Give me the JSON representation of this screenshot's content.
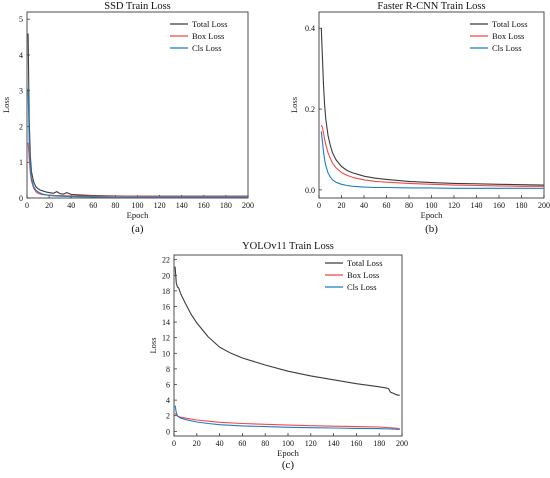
{
  "colors": {
    "total": "#3c3c3c",
    "box": "#ee4a4a",
    "cls": "#1f7dc4"
  },
  "chart_data": [
    {
      "type": "line",
      "panel_label": "(a)",
      "title": "SSD Train Loss",
      "xlabel": "Epoch",
      "ylabel": "Loss",
      "xlim": [
        0,
        200
      ],
      "ylim": [
        0,
        5.2
      ],
      "xticks": [
        0,
        20,
        40,
        60,
        80,
        100,
        120,
        140,
        160,
        180,
        200
      ],
      "yticks": [
        0,
        1,
        2,
        3,
        4,
        5
      ],
      "legend": "top-right",
      "series": [
        {
          "name": "Total Loss",
          "color_key": "total",
          "x": [
            1,
            2,
            3,
            4,
            6,
            8,
            10,
            12,
            14,
            17,
            20,
            24,
            27,
            30,
            33,
            36,
            40,
            45,
            50,
            60,
            80,
            100,
            120,
            140,
            160,
            180,
            200
          ],
          "y": [
            4.6,
            2.2,
            1.2,
            0.75,
            0.45,
            0.32,
            0.26,
            0.22,
            0.2,
            0.17,
            0.15,
            0.13,
            0.18,
            0.12,
            0.11,
            0.15,
            0.1,
            0.09,
            0.08,
            0.07,
            0.06,
            0.05,
            0.05,
            0.05,
            0.05,
            0.05,
            0.05
          ]
        },
        {
          "name": "Box Loss",
          "color_key": "box",
          "x": [
            1,
            2,
            3,
            4,
            6,
            8,
            10,
            13,
            16,
            20,
            25,
            30,
            40,
            60,
            80,
            100,
            120,
            140,
            160,
            180,
            200
          ],
          "y": [
            1.55,
            1.1,
            0.72,
            0.48,
            0.28,
            0.18,
            0.13,
            0.1,
            0.09,
            0.08,
            0.07,
            0.07,
            0.06,
            0.05,
            0.05,
            0.05,
            0.04,
            0.04,
            0.04,
            0.04,
            0.04
          ]
        },
        {
          "name": "Cls Loss",
          "color_key": "cls",
          "x": [
            1,
            2,
            3,
            4,
            6,
            8,
            10,
            12,
            14,
            17,
            20,
            25,
            30,
            40,
            60,
            80,
            100,
            120,
            140,
            160,
            180,
            200
          ],
          "y": [
            3.05,
            1.6,
            0.9,
            0.55,
            0.32,
            0.22,
            0.17,
            0.14,
            0.11,
            0.09,
            0.07,
            0.06,
            0.05,
            0.04,
            0.03,
            0.02,
            0.02,
            0.02,
            0.02,
            0.02,
            0.02,
            0.02
          ]
        }
      ]
    },
    {
      "type": "line",
      "panel_label": "(b)",
      "title": "Faster R-CNN Train Loss",
      "xlabel": "Epoch",
      "ylabel": "Loss",
      "xlim": [
        0,
        200
      ],
      "ylim": [
        -0.02,
        0.44
      ],
      "xticks": [
        0,
        20,
        40,
        60,
        80,
        100,
        120,
        140,
        160,
        180,
        200
      ],
      "yticks": [
        0,
        0.2,
        0.4
      ],
      "ytick_labels": [
        "0.0",
        "0.2",
        "0.4"
      ],
      "legend": "top-right",
      "series": [
        {
          "name": "Total Loss",
          "color_key": "total",
          "x": [
            2,
            3,
            4,
            5,
            6,
            8,
            10,
            12,
            15,
            20,
            25,
            30,
            40,
            50,
            60,
            80,
            100,
            120,
            140,
            160,
            180,
            200
          ],
          "y": [
            0.4,
            0.33,
            0.26,
            0.21,
            0.175,
            0.135,
            0.11,
            0.092,
            0.075,
            0.058,
            0.048,
            0.042,
            0.034,
            0.029,
            0.026,
            0.021,
            0.018,
            0.016,
            0.015,
            0.014,
            0.013,
            0.012
          ]
        },
        {
          "name": "Box Loss",
          "color_key": "box",
          "x": [
            2,
            3,
            4,
            5,
            6,
            8,
            10,
            12,
            15,
            20,
            25,
            30,
            40,
            50,
            60,
            80,
            100,
            120,
            140,
            160,
            180,
            200
          ],
          "y": [
            0.16,
            0.155,
            0.14,
            0.125,
            0.112,
            0.092,
            0.078,
            0.066,
            0.055,
            0.043,
            0.036,
            0.031,
            0.025,
            0.021,
            0.019,
            0.016,
            0.014,
            0.012,
            0.011,
            0.01,
            0.009,
            0.009
          ]
        },
        {
          "name": "Cls Loss",
          "color_key": "cls",
          "x": [
            2,
            3,
            4,
            5,
            6,
            8,
            10,
            12,
            15,
            20,
            25,
            30,
            40,
            50,
            60,
            80,
            100,
            120,
            140,
            160,
            180,
            200
          ],
          "y": [
            0.145,
            0.12,
            0.095,
            0.075,
            0.06,
            0.042,
            0.032,
            0.025,
            0.019,
            0.014,
            0.011,
            0.009,
            0.007,
            0.006,
            0.006,
            0.005,
            0.005,
            0.004,
            0.004,
            0.004,
            0.004,
            0.004
          ]
        }
      ]
    },
    {
      "type": "line",
      "panel_label": "(c)",
      "title": "YOLOv11 Train Loss",
      "xlabel": "Epoch",
      "ylabel": "Loss",
      "xlim": [
        0,
        200
      ],
      "ylim": [
        -0.6,
        22.6
      ],
      "xticks": [
        0,
        20,
        40,
        60,
        80,
        100,
        120,
        140,
        160,
        180,
        200
      ],
      "yticks": [
        0,
        2,
        4,
        6,
        8,
        10,
        12,
        14,
        16,
        18,
        20,
        22
      ],
      "legend": "top-right",
      "series": [
        {
          "name": "Total Loss",
          "color_key": "total",
          "x": [
            1,
            2,
            3,
            4,
            5,
            6,
            8,
            10,
            15,
            20,
            25,
            30,
            40,
            50,
            60,
            80,
            100,
            120,
            140,
            160,
            180,
            188,
            190,
            192,
            195,
            198
          ],
          "y": [
            21.1,
            19.0,
            18.5,
            18.4,
            18.0,
            17.6,
            17.0,
            16.4,
            15.0,
            13.9,
            13.0,
            12.1,
            10.8,
            10.0,
            9.4,
            8.5,
            7.7,
            7.1,
            6.6,
            6.1,
            5.7,
            5.5,
            5.0,
            4.9,
            4.7,
            4.6
          ]
        },
        {
          "name": "Box Loss",
          "color_key": "box",
          "x": [
            1,
            2,
            3,
            5,
            10,
            20,
            30,
            40,
            60,
            80,
            100,
            120,
            140,
            160,
            180,
            190,
            198
          ],
          "y": [
            2.3,
            2.1,
            1.95,
            1.85,
            1.7,
            1.45,
            1.3,
            1.15,
            1.0,
            0.9,
            0.8,
            0.72,
            0.65,
            0.6,
            0.55,
            0.45,
            0.35
          ]
        },
        {
          "name": "Cls Loss",
          "color_key": "cls",
          "x": [
            1,
            2,
            3,
            5,
            10,
            20,
            30,
            40,
            60,
            80,
            100,
            120,
            140,
            160,
            180,
            190,
            198
          ],
          "y": [
            3.3,
            2.4,
            2.0,
            1.75,
            1.5,
            1.2,
            1.0,
            0.85,
            0.7,
            0.6,
            0.52,
            0.46,
            0.42,
            0.38,
            0.35,
            0.3,
            0.25
          ]
        }
      ]
    }
  ]
}
